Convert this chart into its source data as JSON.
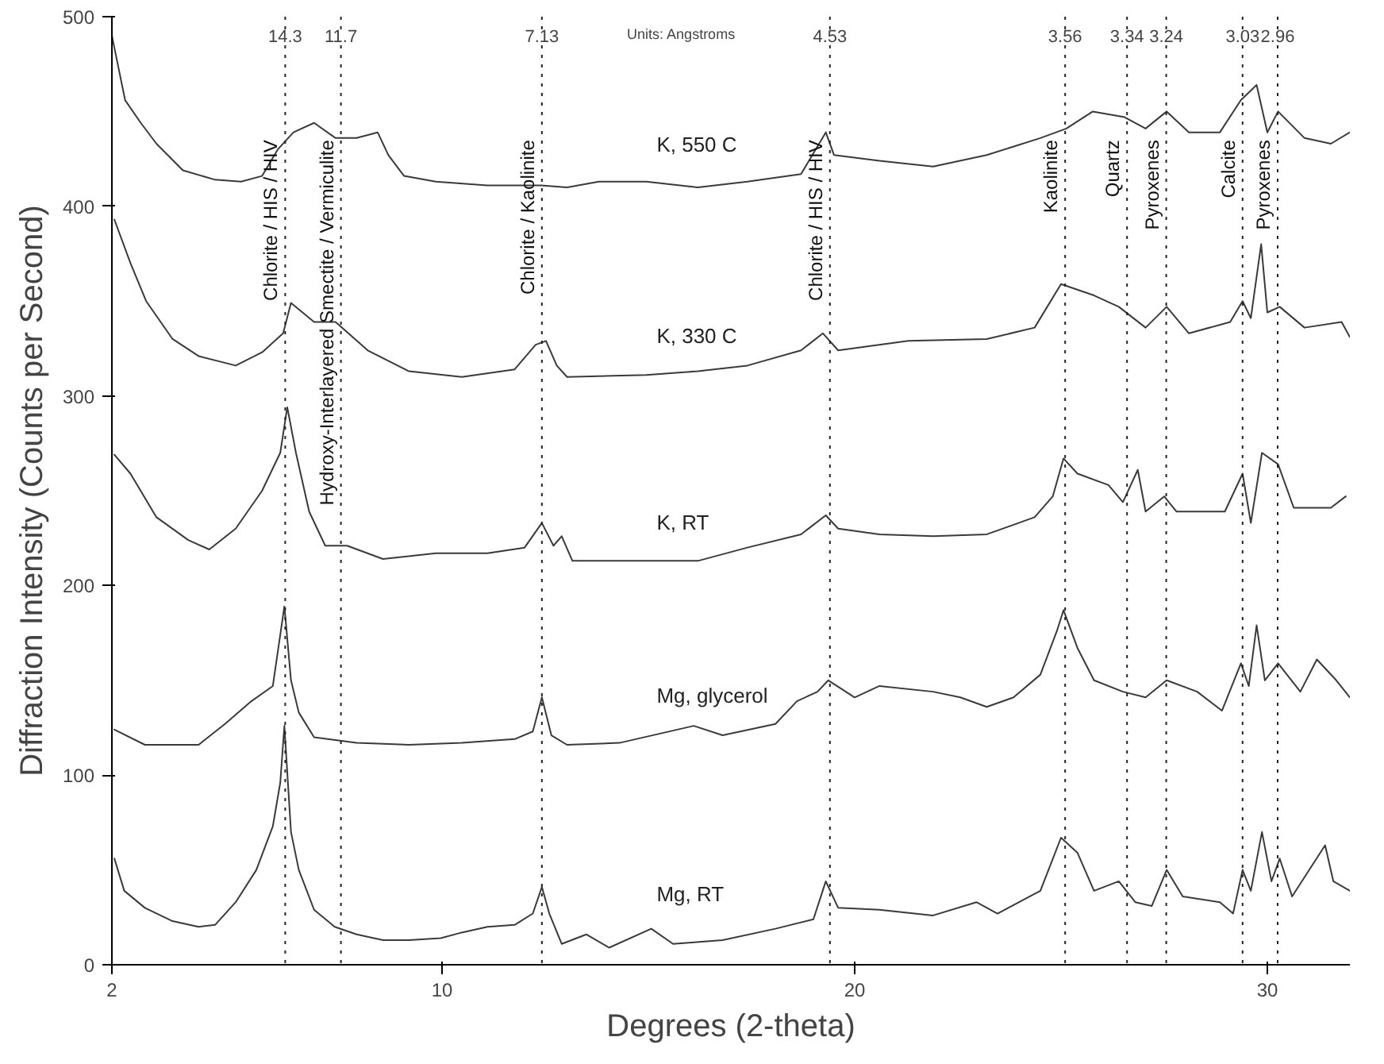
{
  "chart_data": {
    "type": "line",
    "xlabel": "Degrees (2-theta)",
    "ylabel": "Diffraction Intensity (Counts per Second)",
    "xlim": [
      2,
      32
    ],
    "ylim": [
      0,
      500
    ],
    "xticks": [
      2,
      10,
      20,
      30
    ],
    "yticks": [
      0,
      100,
      200,
      300,
      400,
      500
    ],
    "grid": false,
    "legend": false,
    "marker": "none",
    "line_style": "solid",
    "series": [
      {
        "name": "K, 550 C",
        "color": "#3a3a3a",
        "x": [
          2.0,
          2.32,
          2.7,
          3.08,
          3.72,
          4.5,
          5.13,
          5.64,
          6.02,
          6.4,
          6.9,
          7.42,
          7.93,
          8.44,
          8.7,
          9.08,
          9.85,
          11.1,
          12.4,
          13.03,
          13.8,
          14.95,
          16.2,
          17.4,
          18.7,
          19.3,
          19.5,
          20.6,
          21.9,
          23.2,
          24.5,
          25.13,
          25.77,
          26.54,
          27.05,
          27.56,
          28.1,
          28.85,
          29.36,
          29.74,
          30.0,
          30.26,
          30.9,
          31.54,
          32.0
        ],
        "values": [
          490,
          456,
          444,
          433,
          419,
          414,
          413,
          416,
          430,
          439,
          444,
          436,
          436,
          439,
          427,
          416,
          413,
          411,
          411,
          410,
          413,
          413,
          410,
          413,
          417,
          439,
          427,
          424,
          421,
          427,
          436,
          441,
          450,
          447,
          441,
          450,
          439,
          439,
          456,
          464,
          439,
          450,
          436,
          433,
          439
        ]
      },
      {
        "name": "K, 330 C",
        "color": "#3a3a3a",
        "x": [
          2.06,
          2.45,
          2.83,
          3.47,
          4.1,
          5.0,
          5.64,
          6.15,
          6.34,
          6.9,
          7.42,
          8.2,
          9.2,
          10.48,
          11.76,
          12.27,
          12.52,
          12.78,
          13.03,
          14.95,
          16.2,
          17.4,
          18.7,
          19.23,
          19.6,
          21.3,
          23.2,
          24.36,
          25.0,
          25.8,
          26.4,
          27.05,
          27.56,
          28.1,
          29.1,
          29.4,
          29.6,
          29.85,
          30.0,
          30.3,
          30.9,
          31.8,
          32.0
        ],
        "values": [
          393,
          370,
          350,
          330,
          321,
          316,
          323,
          333,
          349,
          339,
          339,
          324,
          313,
          310,
          314,
          327,
          329,
          316,
          310,
          311,
          313,
          316,
          324,
          333,
          324,
          329,
          330,
          336,
          359,
          353,
          347,
          336,
          347,
          333,
          339,
          350,
          341,
          380,
          344,
          347,
          336,
          339,
          331
        ]
      },
      {
        "name": "K, RT",
        "color": "#3a3a3a",
        "x": [
          2.06,
          2.45,
          3.08,
          3.85,
          4.36,
          5.0,
          5.64,
          6.08,
          6.25,
          6.46,
          6.78,
          7.17,
          7.7,
          8.57,
          9.85,
          11.1,
          12.0,
          12.42,
          12.7,
          12.9,
          13.16,
          14.3,
          16.2,
          17.4,
          18.7,
          19.3,
          19.6,
          20.6,
          21.9,
          23.2,
          24.36,
          24.8,
          25.06,
          25.4,
          26.15,
          26.5,
          26.86,
          27.05,
          27.5,
          27.8,
          28.97,
          29.4,
          29.6,
          29.87,
          30.26,
          30.64,
          31.54,
          31.9
        ],
        "values": [
          269,
          259,
          236,
          224,
          219,
          230,
          250,
          270,
          294,
          270,
          239,
          221,
          221,
          214,
          217,
          217,
          220,
          233,
          221,
          226,
          213,
          213,
          213,
          220,
          227,
          237,
          230,
          227,
          226,
          227,
          236,
          247,
          267,
          259,
          253,
          244,
          261,
          239,
          247,
          239,
          239,
          259,
          233,
          270,
          264,
          241,
          241,
          247
        ]
      },
      {
        "name": "Mg, glycerol",
        "color": "#3a3a3a",
        "x": [
          2.06,
          2.8,
          4.1,
          4.74,
          5.38,
          5.9,
          6.18,
          6.34,
          6.53,
          6.9,
          7.93,
          9.2,
          10.48,
          11.76,
          12.2,
          12.42,
          12.65,
          13.03,
          14.3,
          16.1,
          16.8,
          18.08,
          18.6,
          19.1,
          19.36,
          20.0,
          20.6,
          21.9,
          22.56,
          23.2,
          23.85,
          24.5,
          24.9,
          25.06,
          25.4,
          25.8,
          26.5,
          27.05,
          27.56,
          28.3,
          28.9,
          29.36,
          29.55,
          29.74,
          29.94,
          30.26,
          30.8,
          31.2,
          31.67,
          32.0
        ],
        "values": [
          124,
          116,
          116,
          127,
          139,
          147,
          189,
          150,
          133,
          120,
          117,
          116,
          117,
          119,
          123,
          141,
          121,
          116,
          117,
          126,
          121,
          127,
          139,
          144,
          150,
          141,
          147,
          144,
          141,
          136,
          141,
          153,
          176,
          187,
          167,
          150,
          144,
          141,
          150,
          144,
          134,
          159,
          147,
          179,
          150,
          159,
          144,
          161,
          150,
          141
        ]
      },
      {
        "name": "Mg, RT",
        "color": "#3a3a3a",
        "x": [
          2.06,
          2.3,
          2.8,
          3.47,
          4.1,
          4.5,
          5.0,
          5.5,
          5.9,
          6.08,
          6.18,
          6.34,
          6.53,
          6.9,
          7.4,
          7.93,
          8.57,
          9.2,
          9.97,
          10.48,
          11.1,
          11.76,
          12.2,
          12.42,
          12.6,
          12.9,
          13.5,
          14.05,
          15.07,
          15.6,
          16.8,
          18.08,
          19.0,
          19.3,
          19.6,
          20.6,
          21.9,
          22.95,
          23.46,
          24.5,
          25.0,
          25.4,
          25.8,
          26.4,
          26.8,
          27.2,
          27.56,
          27.95,
          28.85,
          29.17,
          29.4,
          29.6,
          29.87,
          30.1,
          30.3,
          30.6,
          31.4,
          31.6,
          32.0
        ],
        "values": [
          56,
          39,
          30,
          23,
          20,
          21,
          33,
          50,
          73,
          96,
          126,
          70,
          50,
          29,
          20,
          16,
          13,
          13,
          14,
          17,
          20,
          21,
          27,
          41,
          27,
          11,
          16,
          9,
          19,
          11,
          13,
          19,
          24,
          44,
          30,
          29,
          26,
          33,
          27,
          39,
          67,
          59,
          39,
          44,
          33,
          31,
          50,
          36,
          33,
          27,
          50,
          39,
          70,
          44,
          56,
          36,
          63,
          44,
          39
        ]
      }
    ],
    "ref_lines": [
      {
        "axis": "x",
        "value": 6.2,
        "label": "Chlorite / HIS / HIV",
        "line_style": "dotted"
      },
      {
        "axis": "x",
        "value": 7.55,
        "label": "Hydroxy-Interlayered Smectite / Vermiculite",
        "line_style": "dotted"
      },
      {
        "axis": "x",
        "value": 12.42,
        "label": "Chlorite / Kaolinite",
        "line_style": "dotted"
      },
      {
        "axis": "x",
        "value": 19.4,
        "label": "Chlorite / HIS / HIV",
        "line_style": "dotted"
      },
      {
        "axis": "x",
        "value": 25.1,
        "label": "Kaolinite",
        "line_style": "dotted"
      },
      {
        "axis": "x",
        "value": 26.6,
        "label": "Quartz",
        "line_style": "dotted"
      },
      {
        "axis": "x",
        "value": 27.55,
        "label": "Pyroxenes",
        "line_style": "dotted"
      },
      {
        "axis": "x",
        "value": 29.4,
        "label": "Calcite",
        "line_style": "dotted"
      },
      {
        "axis": "x",
        "value": 30.25,
        "label": "Pyroxenes",
        "line_style": "dotted"
      }
    ],
    "annotations": [
      "Units: Angstroms",
      {
        "text": "14.3",
        "x": 6.2,
        "y": 490
      },
      {
        "text": "11.7",
        "x": 7.55,
        "y": 490
      },
      {
        "text": "7.13",
        "x": 12.42,
        "y": 490
      },
      {
        "text": "4.53",
        "x": 19.4,
        "y": 490
      },
      {
        "text": "3.56",
        "x": 25.1,
        "y": 490
      },
      {
        "text": "3.34",
        "x": 26.6,
        "y": 490
      },
      {
        "text": "3.24",
        "x": 27.55,
        "y": 490
      },
      {
        "text": "3.03",
        "x": 29.4,
        "y": 490
      },
      {
        "text": "2.96",
        "x": 30.25,
        "y": 490
      }
    ]
  }
}
